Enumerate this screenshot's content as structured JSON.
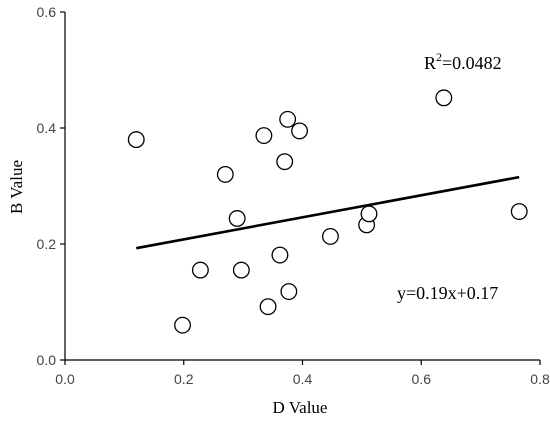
{
  "chart_data": {
    "type": "scatter",
    "title": "",
    "xlabel": "D Value",
    "ylabel": "B Value",
    "xlim": [
      0.0,
      0.8
    ],
    "ylim": [
      0.0,
      0.6
    ],
    "x_ticks": [
      "0.0",
      "0.2",
      "0.4",
      "0.6",
      "0.8"
    ],
    "y_ticks": [
      "0.0",
      "0.2",
      "0.4",
      "0.6"
    ],
    "grid": false,
    "series": [
      {
        "points": [
          [
            0.12,
            0.38
          ],
          [
            0.198,
            0.06
          ],
          [
            0.228,
            0.155
          ],
          [
            0.27,
            0.32
          ],
          [
            0.29,
            0.244
          ],
          [
            0.297,
            0.155
          ],
          [
            0.335,
            0.387
          ],
          [
            0.342,
            0.092
          ],
          [
            0.362,
            0.181
          ],
          [
            0.37,
            0.342
          ],
          [
            0.375,
            0.415
          ],
          [
            0.377,
            0.118
          ],
          [
            0.395,
            0.395
          ],
          [
            0.447,
            0.213
          ],
          [
            0.508,
            0.233
          ],
          [
            0.512,
            0.252
          ],
          [
            0.638,
            0.452
          ],
          [
            0.765,
            0.256
          ]
        ]
      }
    ],
    "fit_line": {
      "slope": 0.19,
      "intercept": 0.17,
      "x_range": [
        0.12,
        0.765
      ]
    },
    "annotations": {
      "r2_prefix": "R",
      "r2_sup": "2",
      "r2_value": "=0.0482",
      "equation": "y=0.19x+0.17"
    }
  }
}
